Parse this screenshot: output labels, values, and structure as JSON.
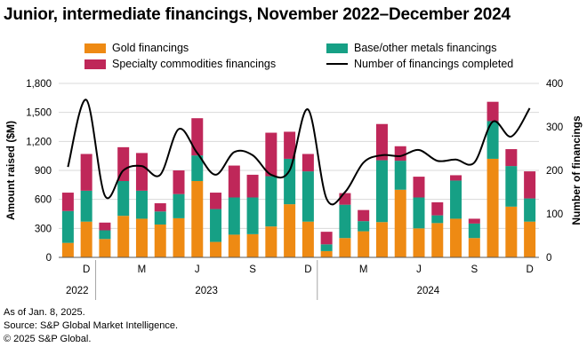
{
  "chart_data": {
    "type": "bar",
    "title": "Junior, intermediate financings, November 2022–December 2024",
    "ylabel": "Amount raised ($M)",
    "y2label": "Number of financings",
    "ylim": [
      0,
      1800
    ],
    "y2lim": [
      0,
      400
    ],
    "yticks": [
      "0",
      "300",
      "600",
      "900",
      "1,200",
      "1,500",
      "1,800"
    ],
    "y2ticks": [
      "0",
      "100",
      "200",
      "300",
      "400"
    ],
    "months": [
      "Nov 2022",
      "Dec 2022",
      "Jan 2023",
      "Feb 2023",
      "Mar 2023",
      "Apr 2023",
      "May 2023",
      "Jun 2023",
      "Jul 2023",
      "Aug 2023",
      "Sep 2023",
      "Oct 2023",
      "Nov 2023",
      "Dec 2023",
      "Jan 2024",
      "Feb 2024",
      "Mar 2024",
      "Apr 2024",
      "May 2024",
      "Jun 2024",
      "Jul 2024",
      "Aug 2024",
      "Sep 2024",
      "Oct 2024",
      "Nov 2024",
      "Dec 2024"
    ],
    "month_labels": [
      "",
      "D",
      "",
      "",
      "M",
      "",
      "",
      "J",
      "",
      "",
      "S",
      "",
      "",
      "D",
      "",
      "",
      "M",
      "",
      "",
      "J",
      "",
      "",
      "S",
      "",
      "",
      "D"
    ],
    "year_groups": [
      {
        "label": "2022",
        "start": 0,
        "end": 1
      },
      {
        "label": "2023",
        "start": 2,
        "end": 13
      },
      {
        "label": "2024",
        "start": 14,
        "end": 25
      }
    ],
    "series": [
      {
        "name": "Gold financings",
        "color": "#EE8A13",
        "values": [
          150,
          370,
          190,
          430,
          400,
          340,
          405,
          790,
          160,
          235,
          240,
          320,
          550,
          370,
          65,
          200,
          270,
          365,
          700,
          300,
          355,
          400,
          200,
          1020,
          525,
          370
        ]
      },
      {
        "name": "Base/other metals financings",
        "color": "#16A085",
        "values": [
          330,
          320,
          90,
          360,
          290,
          135,
          250,
          265,
          340,
          385,
          380,
          520,
          470,
          520,
          70,
          345,
          105,
          640,
          300,
          320,
          80,
          395,
          150,
          390,
          420,
          240
        ]
      },
      {
        "name": "Specialty commodities financings",
        "color": "#BF2759",
        "values": [
          190,
          380,
          80,
          350,
          390,
          85,
          245,
          385,
          170,
          330,
          235,
          450,
          280,
          180,
          130,
          120,
          115,
          375,
          150,
          215,
          135,
          55,
          50,
          200,
          175,
          280
        ]
      }
    ],
    "line": {
      "name": "Number of financings completed",
      "color": "#000000",
      "values": [
        208,
        362,
        142,
        200,
        210,
        190,
        295,
        240,
        190,
        242,
        235,
        190,
        200,
        340,
        135,
        150,
        218,
        235,
        233,
        247,
        222,
        225,
        218,
        312,
        278,
        343
      ]
    }
  },
  "legend": {
    "gold": "Gold financings",
    "base": "Base/other metals financings",
    "specialty": "Specialty commodities financings",
    "count": "Number of financings completed"
  },
  "footer": {
    "line1": "As of Jan. 8, 2025.",
    "line2": "Source: S&P Global Market Intelligence.",
    "line3": "© 2025 S&P Global."
  },
  "colors": {
    "gold": "#EE8A13",
    "base": "#16A085",
    "specialty": "#BF2759",
    "grid": "#D9D9D9",
    "axis": "#595959"
  }
}
